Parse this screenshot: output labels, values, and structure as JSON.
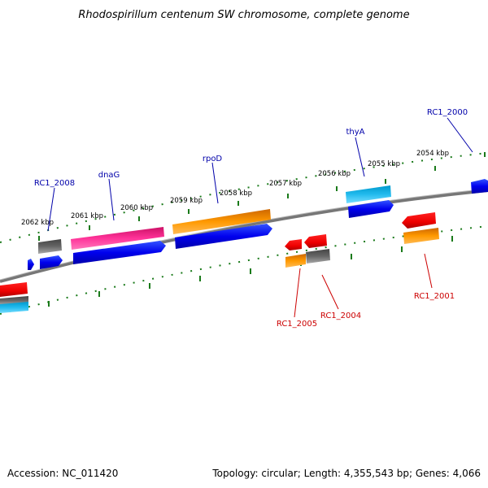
{
  "title": "Rhodospirillum centenum SW chromosome, complete genome",
  "footer": {
    "accession": "Accession: NC_011420",
    "summary": "Topology: circular; Length: 4,355,543 bp; Genes: 4,066"
  },
  "kbp_ticks": [
    "2062 kbp",
    "2061 kbp",
    "2060 kbp",
    "2059 kbp",
    "2058 kbp",
    "2057 kbp",
    "2056 kbp",
    "2055 kbp",
    "2054 kbp"
  ],
  "labels_forward": [
    "RC1_2008",
    "dnaG",
    "rpoD",
    "thyA",
    "RC1_2000"
  ],
  "labels_reverse": [
    "RC1_2005",
    "RC1_2004",
    "RC1_2001"
  ],
  "colors": {
    "track": "#808080",
    "ticks": "#1a7a1a",
    "forward_label": "#0000aa",
    "reverse_label": "#cc0000",
    "cds": "#0000ee",
    "pink": "#ee3399",
    "orange": "#ff9900",
    "red": "#ee0000",
    "cyan": "#22bbee",
    "gray": "#666666"
  }
}
